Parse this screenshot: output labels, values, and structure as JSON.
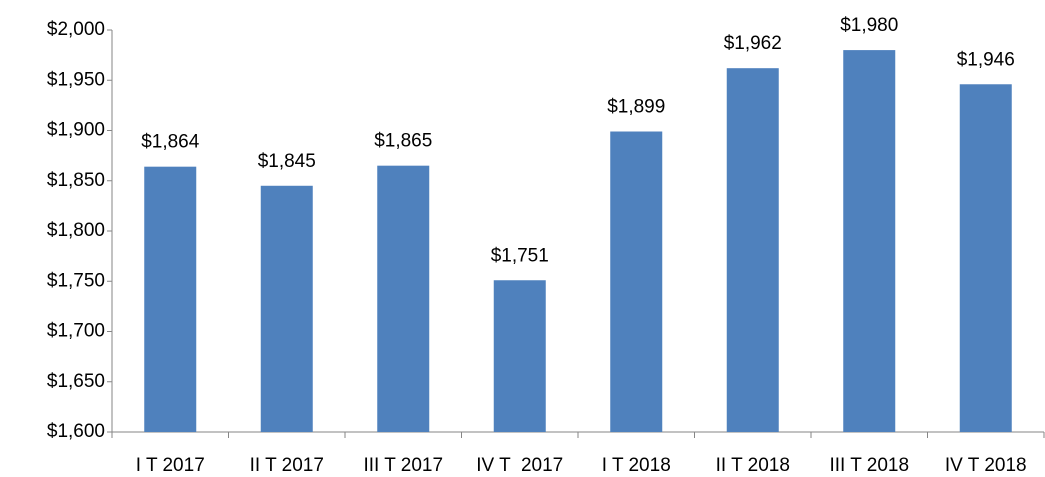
{
  "chart_data": {
    "type": "bar",
    "categories": [
      "I T 2017",
      "II T 2017",
      "III T 2017",
      "IV T  2017",
      "I T 2018",
      "II T 2018",
      "III T 2018",
      "IV T 2018"
    ],
    "values": [
      1864,
      1845,
      1865,
      1751,
      1899,
      1962,
      1980,
      1946
    ],
    "value_labels": [
      "$1,864",
      "$1,845",
      "$1,865",
      "$1,751",
      "$1,899",
      "$1,962",
      "$1,980",
      "$1,946"
    ],
    "color": "#4f81bd",
    "ylim": [
      1600,
      2000
    ],
    "yticks": [
      {
        "value": 1600,
        "label": "$1,600"
      },
      {
        "value": 1650,
        "label": "$1,650"
      },
      {
        "value": 1700,
        "label": "$1,700"
      },
      {
        "value": 1750,
        "label": "$1,750"
      },
      {
        "value": 1800,
        "label": "$1,800"
      },
      {
        "value": 1850,
        "label": "$1,850"
      },
      {
        "value": 1900,
        "label": "$1,900"
      },
      {
        "value": 1950,
        "label": "$1,950"
      },
      {
        "value": 2000,
        "label": "$2,000"
      }
    ],
    "grid": false
  }
}
